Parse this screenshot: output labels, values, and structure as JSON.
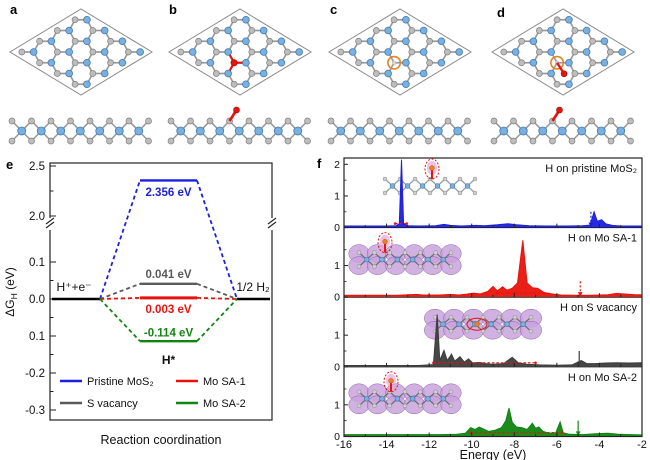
{
  "figure": {
    "background": "#ffffff",
    "panel_labels": {
      "a": "a",
      "b": "b",
      "c": "c",
      "d": "d",
      "e": "e",
      "f": "f"
    },
    "structure_panels": [
      {
        "label": "a",
        "marker": "none",
        "description": "pristine MoS2, top and side view"
      },
      {
        "label": "b",
        "marker": "h-adatom",
        "description": "H adatom on pristine MoS2"
      },
      {
        "label": "c",
        "marker": "s-vacancy",
        "description": "S vacancy site circled"
      },
      {
        "label": "d",
        "marker": "s-vacancy-h-adatom",
        "description": "H at S-vacancy Mo single atom site"
      }
    ],
    "colors": {
      "blue": "#1b1fe0",
      "red": "#e8130c",
      "green": "#128412",
      "dark_gray": "#3d3d3d",
      "mid_gray": "#5a5a5a",
      "orange": "#e8821e",
      "mo_blue": "#7ab0e0",
      "s_gray": "#bdbdbd",
      "purple": "#c9a3dc",
      "axis": "#222222"
    }
  },
  "chart_data": [
    {
      "id": "e",
      "type": "line",
      "title": "",
      "xlabel": "Reaction coordination",
      "ylabel_parts": {
        "main": "ΔG",
        "sub": "H",
        "unit": " (eV)"
      },
      "ytick_labels": [
        "2.5",
        "2.0",
        "0.1",
        "0.0",
        "0.1",
        "-0.2",
        "-0.3"
      ],
      "axis_break": true,
      "states": {
        "initial": "H⁺+e⁻",
        "intermediate": "H*",
        "final": "1/2 H₂"
      },
      "series": [
        {
          "name": "Pristine MoS₂",
          "color": "#1b1fe0",
          "dG_eV": 2.356,
          "label": "2.356 eV"
        },
        {
          "name": "S vacancy",
          "color": "#5a5a5a",
          "dG_eV": 0.041,
          "label": "0.041 eV"
        },
        {
          "name": "Mo SA-1",
          "color": "#e8130c",
          "dG_eV": 0.003,
          "label": "0.003 eV"
        },
        {
          "name": "Mo SA-2",
          "color": "#128412",
          "dG_eV": -0.114,
          "label": "-0.114 eV"
        }
      ],
      "legend": {
        "column1": [
          "Pristine MoS₂",
          "S vacancy"
        ],
        "column2": [
          "Mo SA-1",
          "Mo SA-2"
        ]
      }
    },
    {
      "id": "f",
      "type": "area",
      "xlabel": "Energy (eV)",
      "xlim": [
        -16,
        -2
      ],
      "xtick_labels": [
        "-16",
        "-14",
        "-12",
        "-10",
        "-8",
        "-6",
        "-4",
        "-2"
      ],
      "panels": [
        {
          "name": "H on pristine MoS₂",
          "color": "#1b1fe0",
          "ytick_labels": [
            "0",
            "1",
            "2"
          ],
          "ymax": 2.2,
          "arrow": {
            "x": -4.4,
            "style": "dashed"
          },
          "span": [
            -13.6,
            -13.05
          ],
          "inset": {
            "blobs": false,
            "topH": true
          },
          "points": [
            [
              -16,
              0.05
            ],
            [
              -14,
              0.05
            ],
            [
              -13.55,
              0.06
            ],
            [
              -13.4,
              0.12
            ],
            [
              -13.3,
              2.15
            ],
            [
              -13.2,
              0.12
            ],
            [
              -13,
              0.06
            ],
            [
              -12.5,
              0.05
            ],
            [
              -11.7,
              0.06
            ],
            [
              -11.3,
              0.1
            ],
            [
              -11,
              0.07
            ],
            [
              -10.5,
              0.05
            ],
            [
              -9.8,
              0.07
            ],
            [
              -9.4,
              0.06
            ],
            [
              -8.8,
              0.09
            ],
            [
              -8.3,
              0.12
            ],
            [
              -7.9,
              0.09
            ],
            [
              -7.3,
              0.06
            ],
            [
              -6.5,
              0.05
            ],
            [
              -5.5,
              0.05
            ],
            [
              -4.8,
              0.06
            ],
            [
              -4.45,
              0.08
            ],
            [
              -4.25,
              0.5
            ],
            [
              -4.1,
              0.2
            ],
            [
              -3.9,
              0.25
            ],
            [
              -3.7,
              0.12
            ],
            [
              -3.4,
              0.07
            ],
            [
              -3,
              0.05
            ],
            [
              -2,
              0.05
            ]
          ]
        },
        {
          "name": "H on Mo SA-1",
          "color": "#e8130c",
          "ytick_labels": [
            "0",
            "1"
          ],
          "ymax": 2.2,
          "arrow": {
            "x": -4.9,
            "style": "dashed"
          },
          "span": [
            -8.8,
            -6.6
          ],
          "inset": {
            "blobs": true,
            "topH": true
          },
          "points": [
            [
              -16,
              0.06
            ],
            [
              -13.5,
              0.06
            ],
            [
              -12.6,
              0.09
            ],
            [
              -12.3,
              0.07
            ],
            [
              -11.5,
              0.07
            ],
            [
              -11,
              0.09
            ],
            [
              -10.6,
              0.07
            ],
            [
              -10.2,
              0.1
            ],
            [
              -9.9,
              0.13
            ],
            [
              -9.6,
              0.1
            ],
            [
              -9.25,
              0.18
            ],
            [
              -9,
              0.34
            ],
            [
              -8.8,
              0.2
            ],
            [
              -8.55,
              0.33
            ],
            [
              -8.35,
              0.22
            ],
            [
              -8.1,
              0.28
            ],
            [
              -7.85,
              0.45
            ],
            [
              -7.6,
              1.8
            ],
            [
              -7.4,
              0.45
            ],
            [
              -7.15,
              0.3
            ],
            [
              -6.9,
              0.28
            ],
            [
              -6.6,
              0.15
            ],
            [
              -6.2,
              0.1
            ],
            [
              -5.8,
              0.07
            ],
            [
              -5.2,
              0.06
            ],
            [
              -4.4,
              0.06
            ],
            [
              -3.6,
              0.08
            ],
            [
              -3.2,
              0.12
            ],
            [
              -2.8,
              0.1
            ],
            [
              -2.3,
              0.08
            ],
            [
              -2,
              0.08
            ]
          ]
        },
        {
          "name": "H on S vacancy",
          "color": "#3d3d3d",
          "ytick_labels": [
            "0",
            "1"
          ],
          "ymax": 2.2,
          "arrow": {
            "x": -4.95,
            "style": "solid"
          },
          "span": [
            -11.8,
            -7.0
          ],
          "inset": {
            "blobs": true,
            "innerH": true
          },
          "points": [
            [
              -16,
              0.04
            ],
            [
              -12.5,
              0.04
            ],
            [
              -11.8,
              0.07
            ],
            [
              -11.62,
              1.65
            ],
            [
              -11.5,
              0.2
            ],
            [
              -11.3,
              0.52
            ],
            [
              -11.15,
              0.2
            ],
            [
              -10.95,
              0.4
            ],
            [
              -10.8,
              0.18
            ],
            [
              -10.55,
              0.32
            ],
            [
              -10.35,
              0.15
            ],
            [
              -10.15,
              0.25
            ],
            [
              -9.95,
              0.12
            ],
            [
              -9.65,
              0.14
            ],
            [
              -9.35,
              0.1
            ],
            [
              -9,
              0.08
            ],
            [
              -8.5,
              0.1
            ],
            [
              -8.1,
              0.3
            ],
            [
              -7.8,
              0.12
            ],
            [
              -7.4,
              0.08
            ],
            [
              -6.8,
              0.06
            ],
            [
              -6,
              0.05
            ],
            [
              -5.3,
              0.06
            ],
            [
              -4.85,
              0.2
            ],
            [
              -4.6,
              0.1
            ],
            [
              -4.2,
              0.1
            ],
            [
              -3.7,
              0.12
            ],
            [
              -3.2,
              0.13
            ],
            [
              -2.6,
              0.12
            ],
            [
              -2,
              0.13
            ]
          ]
        },
        {
          "name": "H on Mo SA-2",
          "color": "#128412",
          "ytick_labels": [
            "0",
            "1"
          ],
          "ymax": 2.2,
          "arrow": {
            "x": -5.0,
            "style": "solid"
          },
          "span": [
            -10.05,
            -5.75
          ],
          "inset": {
            "blobs": true,
            "topH": true
          },
          "points": [
            [
              -16,
              0.06
            ],
            [
              -11.5,
              0.06
            ],
            [
              -10.7,
              0.07
            ],
            [
              -10.3,
              0.1
            ],
            [
              -10.05,
              0.28
            ],
            [
              -9.85,
              0.22
            ],
            [
              -9.65,
              0.3
            ],
            [
              -9.45,
              0.24
            ],
            [
              -9.2,
              0.16
            ],
            [
              -8.9,
              0.2
            ],
            [
              -8.6,
              0.28
            ],
            [
              -8.4,
              0.5
            ],
            [
              -8.25,
              0.9
            ],
            [
              -8.1,
              0.45
            ],
            [
              -7.9,
              0.3
            ],
            [
              -7.65,
              0.28
            ],
            [
              -7.4,
              0.22
            ],
            [
              -7.15,
              0.42
            ],
            [
              -7,
              0.26
            ],
            [
              -6.85,
              0.3
            ],
            [
              -6.65,
              0.16
            ],
            [
              -6.35,
              0.1
            ],
            [
              -6.05,
              0.12
            ],
            [
              -5.85,
              0.46
            ],
            [
              -5.7,
              0.12
            ],
            [
              -5.4,
              0.07
            ],
            [
              -4.8,
              0.06
            ],
            [
              -4.1,
              0.09
            ],
            [
              -3.6,
              0.1
            ],
            [
              -3.1,
              0.07
            ],
            [
              -2.5,
              0.06
            ],
            [
              -2,
              0.05
            ]
          ]
        }
      ]
    }
  ]
}
